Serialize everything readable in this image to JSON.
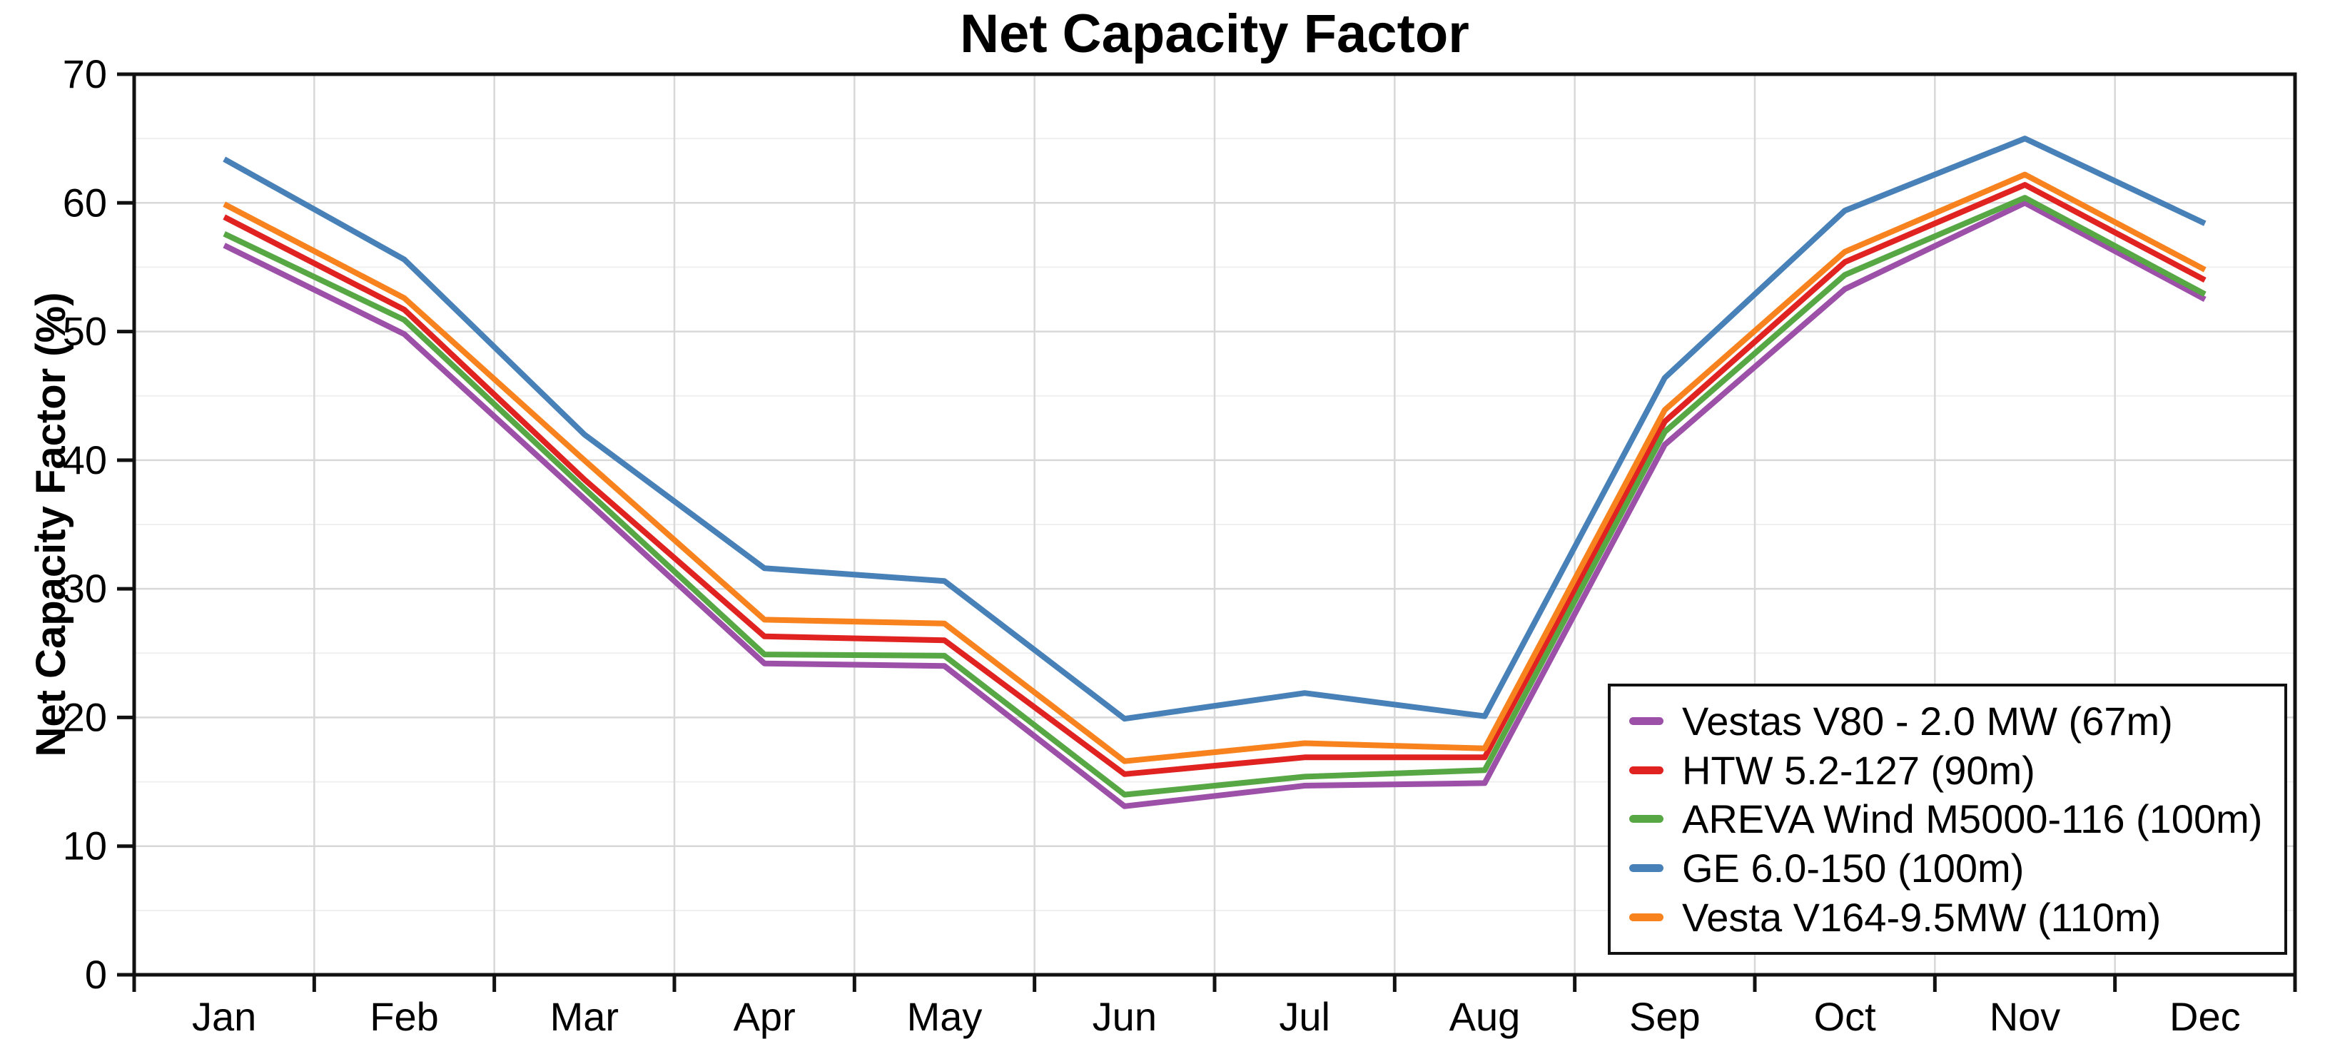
{
  "chart_data": {
    "type": "line",
    "title": "Net Capacity Factor",
    "xlabel": "",
    "ylabel": "Net Capacity Factor (%)",
    "categories": [
      "Jan",
      "Feb",
      "Mar",
      "Apr",
      "May",
      "Jun",
      "Jul",
      "Aug",
      "Sep",
      "Oct",
      "Nov",
      "Dec"
    ],
    "ylim": [
      0,
      70
    ],
    "ytick_step": 10,
    "ytick_minor_step": 5,
    "grid": true,
    "legend_position": "bottom-right",
    "axis_color": "#111111",
    "major_grid_color": "#d8d8d8",
    "minor_grid_color": "#efefef",
    "series": [
      {
        "name": "Vestas V80 - 2.0 MW (67m)",
        "color": "#9c50a8",
        "values": [
          56.7,
          49.8,
          37.0,
          24.2,
          24.0,
          13.1,
          14.7,
          14.9,
          41.2,
          53.3,
          60.0,
          52.5
        ]
      },
      {
        "name": "HTW 5.2-127 (90m)",
        "color": "#e02221",
        "values": [
          58.9,
          51.7,
          38.5,
          26.3,
          26.0,
          15.6,
          16.9,
          16.9,
          43.0,
          55.4,
          61.4,
          54.0
        ]
      },
      {
        "name": "AREVA Wind M5000-116 (100m)",
        "color": "#57a845",
        "values": [
          57.6,
          50.9,
          37.8,
          24.9,
          24.8,
          14.0,
          15.4,
          15.9,
          42.2,
          54.4,
          60.4,
          52.9
        ]
      },
      {
        "name": "GE 6.0-150 (100m)",
        "color": "#4880b8",
        "values": [
          63.4,
          55.6,
          42.0,
          31.6,
          30.6,
          19.9,
          21.9,
          20.1,
          46.4,
          59.4,
          65.0,
          58.4
        ]
      },
      {
        "name": "Vesta V164-9.5MW (110m)",
        "color": "#f8821e",
        "values": [
          59.9,
          52.6,
          40.0,
          27.6,
          27.3,
          16.6,
          18.0,
          17.6,
          43.9,
          56.2,
          62.2,
          54.8
        ]
      }
    ]
  }
}
